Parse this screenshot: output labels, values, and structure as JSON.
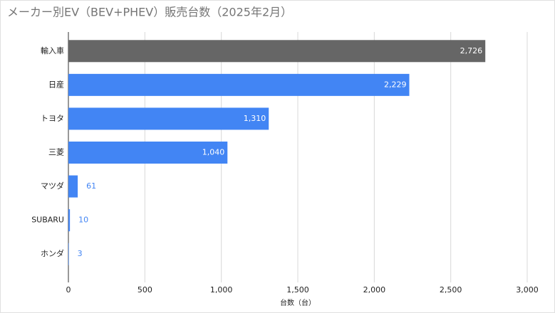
{
  "chart_data": {
    "type": "barh",
    "title": "メーカー別EV（BEV+PHEV）販売台数（2025年2月）",
    "xlabel": "台数（台）",
    "categories": [
      "輸入車",
      "日産",
      "トヨタ",
      "三菱",
      "マツダ",
      "SUBARU",
      "ホンダ"
    ],
    "values": [
      2726,
      2229,
      1310,
      1040,
      61,
      10,
      3
    ],
    "value_labels": [
      "2,726",
      "2,229",
      "1,310",
      "1,040",
      "61",
      "10",
      "3"
    ],
    "colors": [
      "#666666",
      "#4285f4",
      "#4285f4",
      "#4285f4",
      "#4285f4",
      "#4285f4",
      "#4285f4"
    ],
    "xlim": [
      0,
      3000
    ],
    "xticks": [
      0,
      500,
      {
        "value": 1000,
        "label": "1,000"
      },
      {
        "value": 1500,
        "label": "1,500"
      },
      {
        "value": 2000,
        "label": "2,000"
      },
      {
        "value": 2500,
        "label": "2,500"
      },
      {
        "value": 3000,
        "label": "3,000"
      }
    ],
    "grid": true
  }
}
